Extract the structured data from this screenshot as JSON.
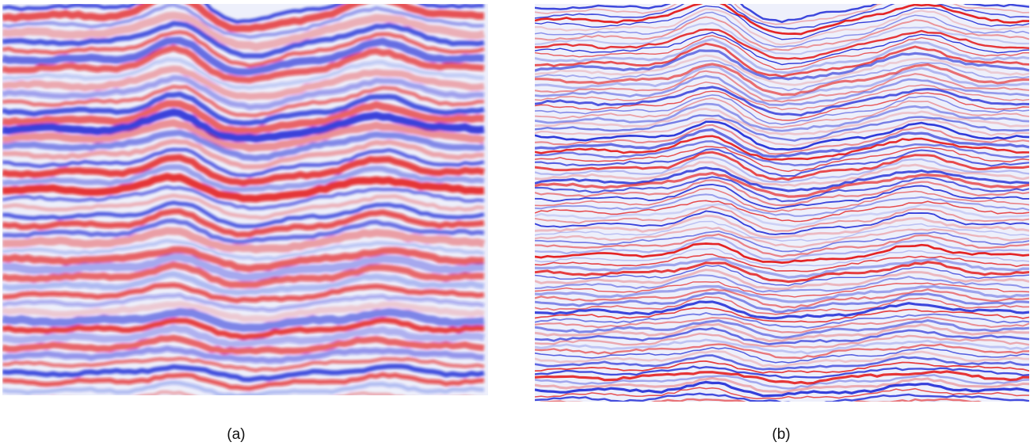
{
  "panels": [
    {
      "id": "a",
      "caption": "(a)"
    },
    {
      "id": "b",
      "caption": "(b)"
    }
  ],
  "colors": {
    "positive": "#e30b0b",
    "negative": "#1420d4",
    "background": "#eef0fb"
  }
}
